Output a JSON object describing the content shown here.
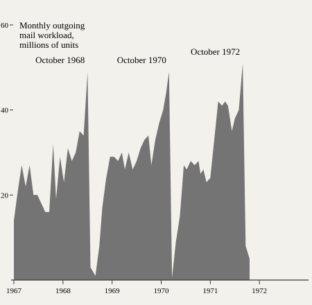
{
  "chart_data": {
    "type": "area",
    "title": "",
    "ylabel_lines": [
      "Monthly outgoing",
      "mail workload,",
      "millions of units"
    ],
    "xlabel": "",
    "ylim": [
      0,
      60
    ],
    "xlim": [
      1967,
      1973
    ],
    "x_unit": "year (fractional, month-by-month)",
    "y_ticks": [
      {
        "value": 60,
        "label": "60"
      },
      {
        "value": 40,
        "label": "40"
      },
      {
        "value": 20,
        "label": "20"
      }
    ],
    "x_ticks": [
      {
        "value": 1967,
        "label": "1967"
      },
      {
        "value": 1968,
        "label": "1968"
      },
      {
        "value": 1969,
        "label": "1969"
      },
      {
        "value": 1970,
        "label": "1970"
      },
      {
        "value": 1971,
        "label": "1971"
      },
      {
        "value": 1972,
        "label": "1972"
      }
    ],
    "fill_color": "#747474",
    "series": [
      {
        "points": [
          [
            1967.0,
            14
          ],
          [
            1967.08,
            21
          ],
          [
            1967.16,
            27
          ],
          [
            1967.24,
            22
          ],
          [
            1967.32,
            27
          ],
          [
            1967.4,
            20
          ],
          [
            1967.48,
            20
          ],
          [
            1967.56,
            18
          ],
          [
            1967.64,
            16
          ],
          [
            1967.72,
            16
          ],
          [
            1967.8,
            32
          ],
          [
            1967.86,
            19
          ],
          [
            1967.94,
            29
          ],
          [
            1968.02,
            23
          ],
          [
            1968.1,
            31
          ],
          [
            1968.18,
            28
          ],
          [
            1968.26,
            30
          ],
          [
            1968.34,
            35
          ],
          [
            1968.42,
            34
          ],
          [
            1968.5,
            49
          ],
          [
            1968.56,
            3
          ],
          [
            1968.66,
            1
          ],
          [
            1968.74,
            8
          ],
          [
            1968.8,
            17
          ],
          [
            1968.88,
            24
          ],
          [
            1968.96,
            29
          ],
          [
            1969.04,
            29
          ],
          [
            1969.12,
            28
          ],
          [
            1969.2,
            30
          ],
          [
            1969.26,
            26
          ],
          [
            1969.34,
            30
          ],
          [
            1969.42,
            26
          ],
          [
            1969.5,
            28
          ],
          [
            1969.58,
            31
          ],
          [
            1969.66,
            33
          ],
          [
            1969.74,
            34
          ],
          [
            1969.8,
            27
          ],
          [
            1969.88,
            33
          ],
          [
            1969.96,
            37
          ],
          [
            1970.04,
            40
          ],
          [
            1970.1,
            44
          ],
          [
            1970.16,
            49
          ],
          [
            1970.22,
            0.5
          ],
          [
            1970.3,
            9
          ],
          [
            1970.38,
            15
          ],
          [
            1970.46,
            27
          ],
          [
            1970.52,
            26
          ],
          [
            1970.6,
            28
          ],
          [
            1970.68,
            27
          ],
          [
            1970.76,
            28
          ],
          [
            1970.8,
            25
          ],
          [
            1970.86,
            26
          ],
          [
            1970.92,
            23
          ],
          [
            1971.0,
            24
          ],
          [
            1971.08,
            33
          ],
          [
            1971.16,
            42
          ],
          [
            1971.24,
            41
          ],
          [
            1971.3,
            42
          ],
          [
            1971.36,
            41
          ],
          [
            1971.44,
            35
          ],
          [
            1971.5,
            38
          ],
          [
            1971.58,
            40
          ],
          [
            1971.66,
            51
          ],
          [
            1971.72,
            8
          ],
          [
            1971.8,
            5
          ]
        ]
      }
    ],
    "annotations": [
      {
        "text": "October 1968",
        "x": 1968.5,
        "y": 51
      },
      {
        "text": "October 1970",
        "x": 1970.16,
        "y": 51
      },
      {
        "text": "October 1972",
        "x": 1971.66,
        "y": 53
      }
    ]
  }
}
